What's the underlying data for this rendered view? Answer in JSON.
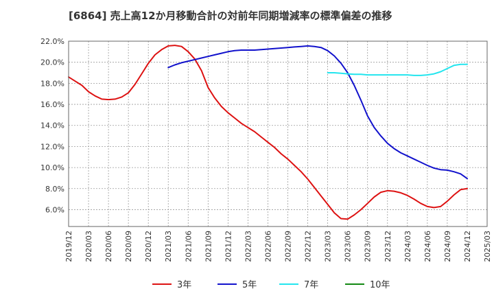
{
  "title": "[6864]  売上高12か月移動合計の対前年同期増減率の標準偏差の推移",
  "chart_data": {
    "type": "line",
    "title": "[6864]  売上高12か月移動合計の対前年同期増減率の標準偏差の推移",
    "xlabel": "",
    "ylabel": "",
    "ylim": [
      4.4,
      22.0
    ],
    "y_ticks": [
      "6.0%",
      "8.0%",
      "10.0%",
      "12.0%",
      "14.0%",
      "16.0%",
      "18.0%",
      "20.0%",
      "22.0%"
    ],
    "x_ticks": [
      "2019/12",
      "2020/03",
      "2020/06",
      "2020/09",
      "2020/12",
      "2021/03",
      "2021/06",
      "2021/09",
      "2021/12",
      "2022/03",
      "2022/06",
      "2022/09",
      "2022/12",
      "2023/03",
      "2023/06",
      "2023/09",
      "2023/12",
      "2024/03",
      "2024/06",
      "2024/09",
      "2024/12",
      "2025/03"
    ],
    "grid": true,
    "legend_position": "bottom",
    "series": [
      {
        "name": "3年",
        "color": "#dd1111",
        "x": [
          "2019/12",
          "2020/01",
          "2020/02",
          "2020/03",
          "2020/04",
          "2020/05",
          "2020/06",
          "2020/07",
          "2020/08",
          "2020/09",
          "2020/10",
          "2020/11",
          "2020/12",
          "2021/01",
          "2021/02",
          "2021/03",
          "2021/04",
          "2021/05",
          "2021/06",
          "2021/07",
          "2021/08",
          "2021/09",
          "2021/10",
          "2021/11",
          "2021/12",
          "2022/01",
          "2022/02",
          "2022/03",
          "2022/04",
          "2022/05",
          "2022/06",
          "2022/07",
          "2022/08",
          "2022/09",
          "2022/10",
          "2022/11",
          "2022/12",
          "2023/01",
          "2023/02",
          "2023/03",
          "2023/04",
          "2023/05",
          "2023/06",
          "2023/07",
          "2023/08",
          "2023/09",
          "2023/10",
          "2023/11",
          "2023/12",
          "2024/01",
          "2024/02",
          "2024/03",
          "2024/04",
          "2024/05",
          "2024/06",
          "2024/07",
          "2024/08",
          "2024/09",
          "2024/10",
          "2024/11",
          "2024/12"
        ],
        "values": [
          18.6,
          18.2,
          17.8,
          17.2,
          16.8,
          16.5,
          16.45,
          16.5,
          16.7,
          17.1,
          17.9,
          18.9,
          19.9,
          20.7,
          21.2,
          21.55,
          21.6,
          21.5,
          21.0,
          20.3,
          19.2,
          17.6,
          16.6,
          15.8,
          15.2,
          14.7,
          14.2,
          13.8,
          13.4,
          12.9,
          12.4,
          11.9,
          11.3,
          10.8,
          10.2,
          9.6,
          8.9,
          8.1,
          7.3,
          6.5,
          5.7,
          5.15,
          5.1,
          5.5,
          6.0,
          6.6,
          7.2,
          7.65,
          7.8,
          7.75,
          7.6,
          7.35,
          7.0,
          6.6,
          6.3,
          6.2,
          6.3,
          6.8,
          7.4,
          7.9,
          8.0
        ]
      },
      {
        "name": "5年",
        "color": "#1111cc",
        "x": [
          "2021/03",
          "2021/04",
          "2021/05",
          "2021/06",
          "2021/07",
          "2021/08",
          "2021/09",
          "2021/10",
          "2021/11",
          "2021/12",
          "2022/01",
          "2022/02",
          "2022/03",
          "2022/04",
          "2022/05",
          "2022/06",
          "2022/07",
          "2022/08",
          "2022/09",
          "2022/10",
          "2022/11",
          "2022/12",
          "2023/01",
          "2023/02",
          "2023/03",
          "2023/04",
          "2023/05",
          "2023/06",
          "2023/07",
          "2023/08",
          "2023/09",
          "2023/10",
          "2023/11",
          "2023/12",
          "2024/01",
          "2024/02",
          "2024/03",
          "2024/04",
          "2024/05",
          "2024/06",
          "2024/07",
          "2024/08",
          "2024/09",
          "2024/10",
          "2024/11",
          "2024/12"
        ],
        "values": [
          19.5,
          19.75,
          19.95,
          20.1,
          20.25,
          20.4,
          20.55,
          20.7,
          20.85,
          21.0,
          21.1,
          21.15,
          21.15,
          21.15,
          21.2,
          21.25,
          21.3,
          21.35,
          21.4,
          21.45,
          21.5,
          21.55,
          21.5,
          21.4,
          21.1,
          20.6,
          19.9,
          19.0,
          17.8,
          16.4,
          14.9,
          13.8,
          13.0,
          12.3,
          11.8,
          11.4,
          11.1,
          10.8,
          10.5,
          10.2,
          9.95,
          9.8,
          9.75,
          9.6,
          9.4,
          8.95
        ]
      },
      {
        "name": "7年",
        "color": "#22e5ee",
        "x": [
          "2023/03",
          "2023/04",
          "2023/05",
          "2023/06",
          "2023/07",
          "2023/08",
          "2023/09",
          "2023/10",
          "2023/11",
          "2023/12",
          "2024/01",
          "2024/02",
          "2024/03",
          "2024/04",
          "2024/05",
          "2024/06",
          "2024/07",
          "2024/08",
          "2024/09",
          "2024/10",
          "2024/11",
          "2024/12"
        ],
        "values": [
          19.0,
          19.0,
          18.95,
          18.9,
          18.85,
          18.85,
          18.8,
          18.8,
          18.8,
          18.8,
          18.8,
          18.8,
          18.8,
          18.75,
          18.75,
          18.8,
          18.9,
          19.1,
          19.4,
          19.7,
          19.8,
          19.8
        ]
      },
      {
        "name": "10年",
        "color": "#118811",
        "x": [],
        "values": []
      }
    ]
  }
}
